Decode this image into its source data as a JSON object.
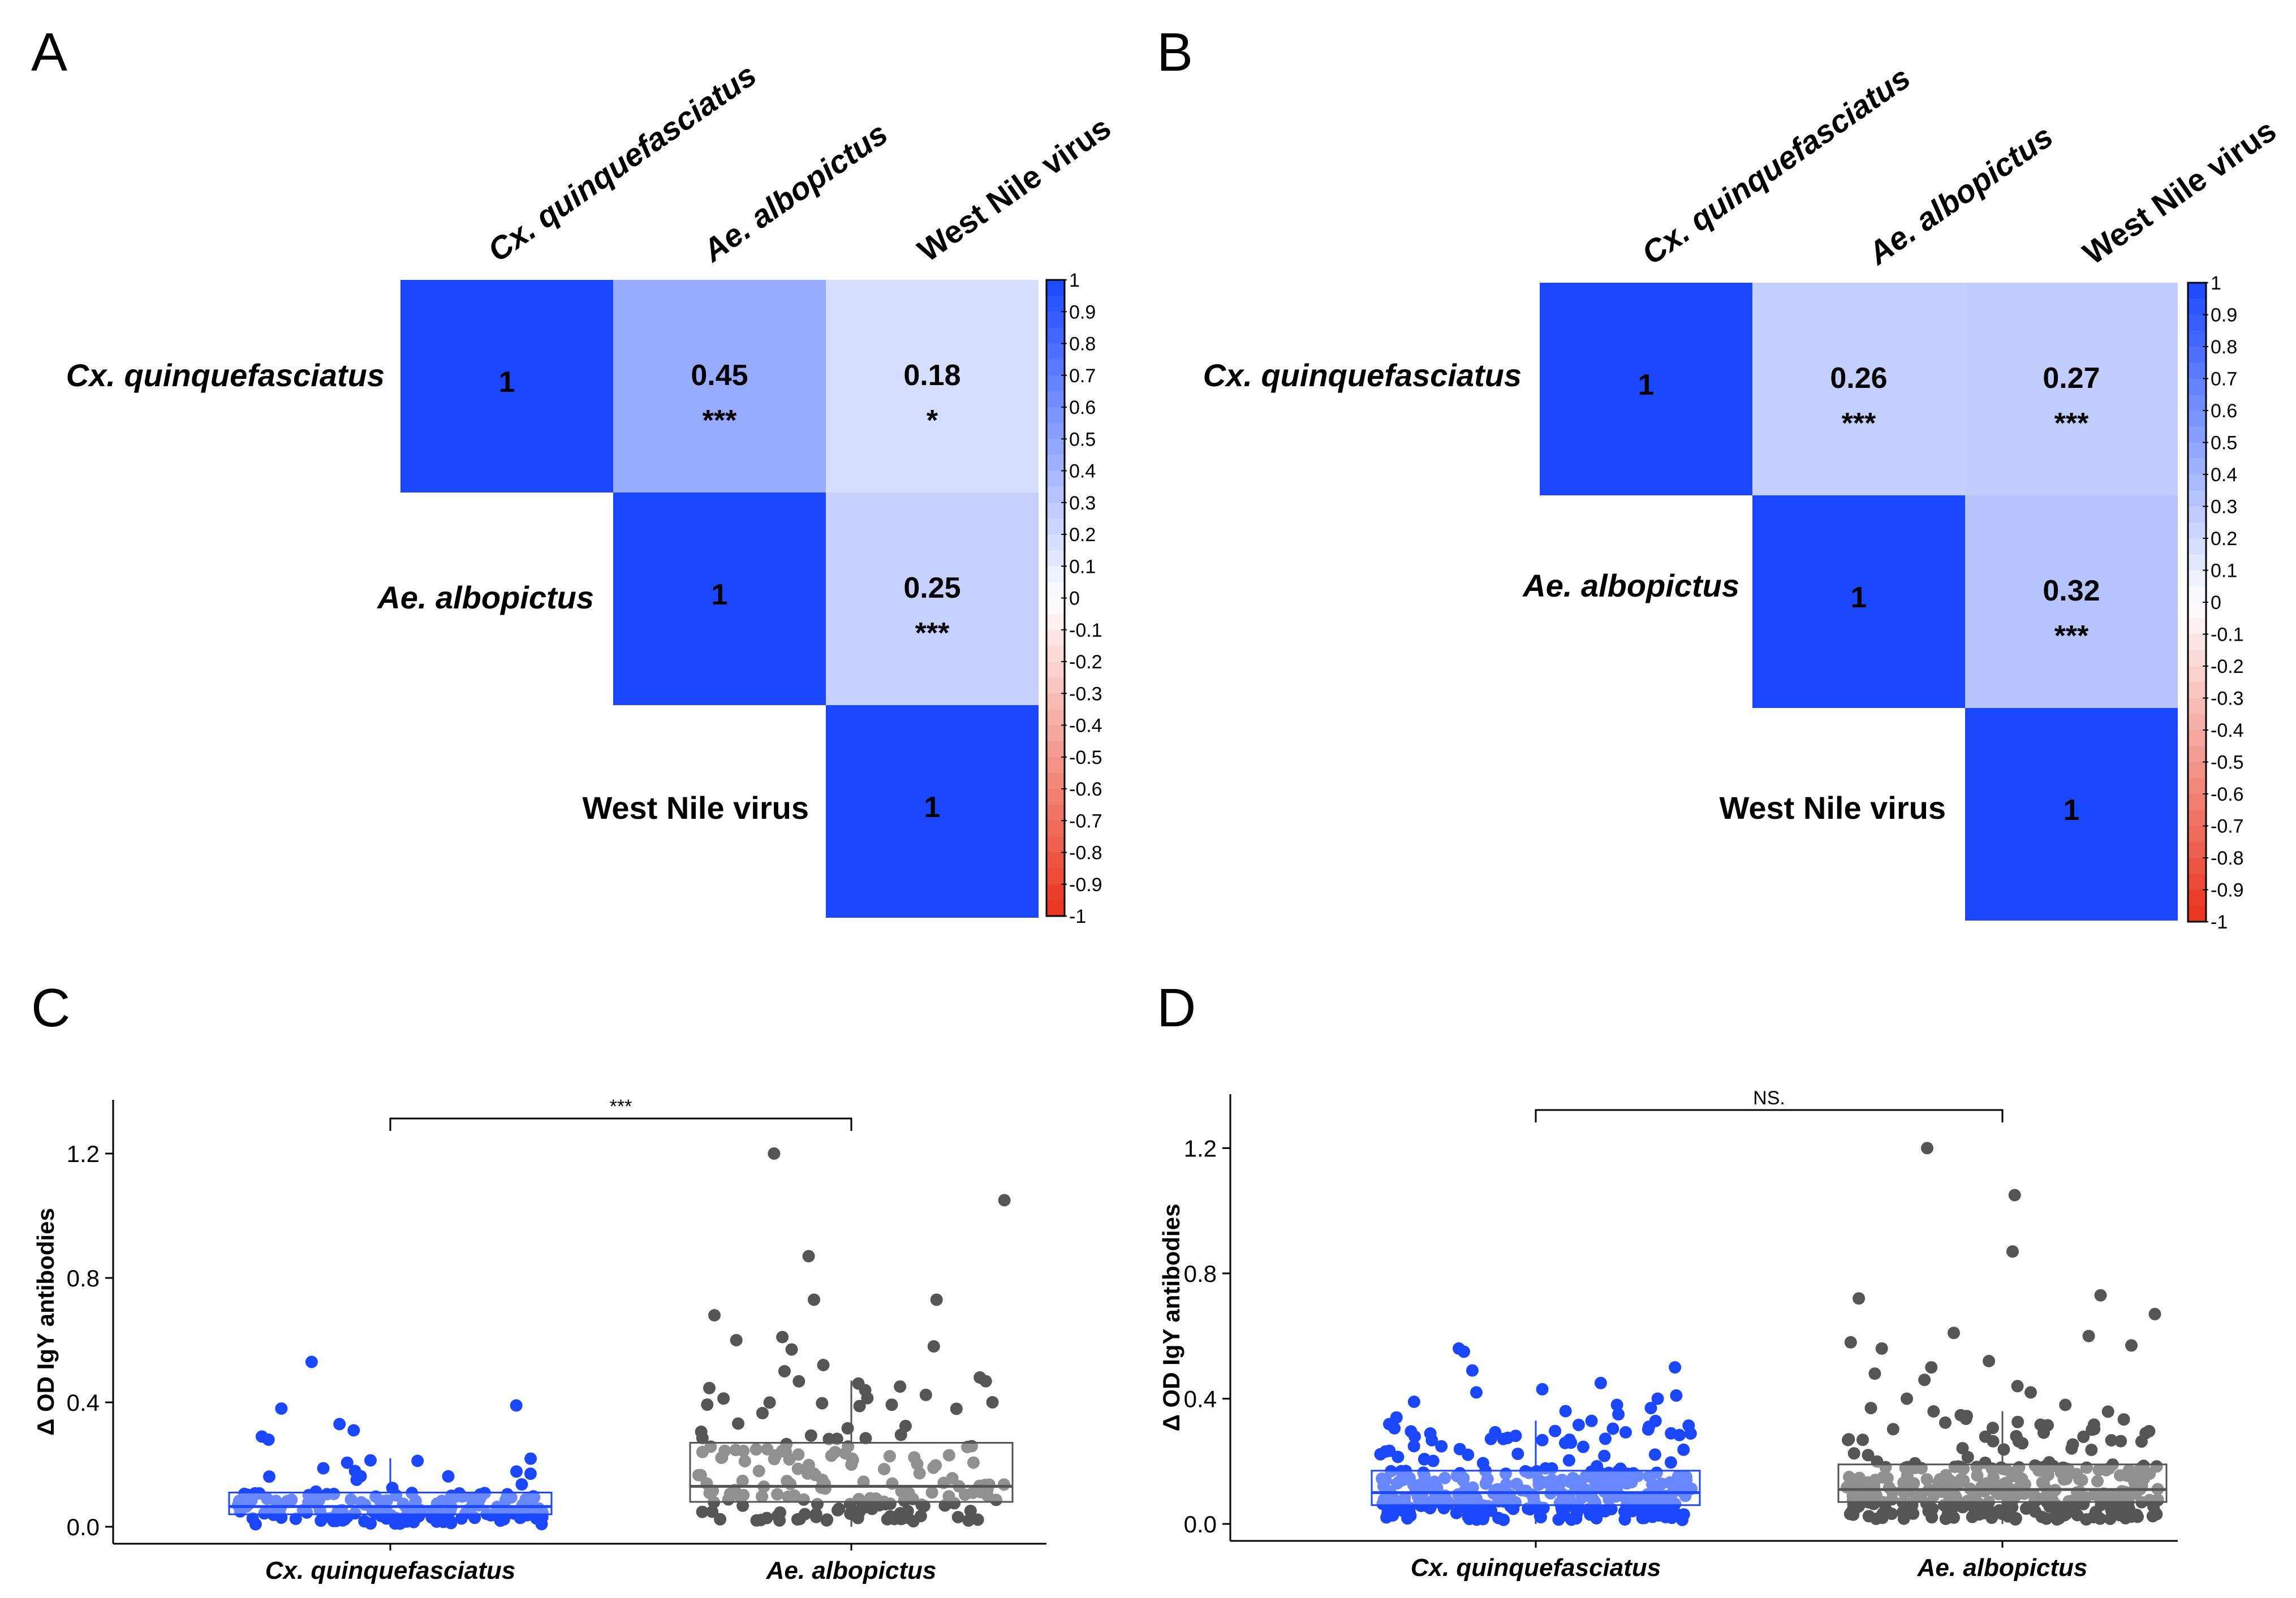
{
  "panels": {
    "a": "A",
    "b": "B",
    "c": "C",
    "d": "D"
  },
  "colors": {
    "pos": "#1a47ff",
    "neg": "#e8311a",
    "mid": "#ffffff",
    "grey_pt": "#555555",
    "blue_box": "#1a47ff",
    "grey_box": "#555555"
  },
  "chart_data": [
    {
      "type": "heatmap",
      "panel": "A",
      "variables": [
        "Cx. quinquefasciatus",
        "Ae. albopictus",
        "West Nile virus"
      ],
      "cells": [
        {
          "row": 0,
          "col": 0,
          "value": 1,
          "sig": ""
        },
        {
          "row": 0,
          "col": 1,
          "value": 0.45,
          "sig": "***"
        },
        {
          "row": 0,
          "col": 2,
          "value": 0.18,
          "sig": "*"
        },
        {
          "row": 1,
          "col": 1,
          "value": 1,
          "sig": ""
        },
        {
          "row": 1,
          "col": 2,
          "value": 0.25,
          "sig": "***"
        },
        {
          "row": 2,
          "col": 2,
          "value": 1,
          "sig": ""
        }
      ],
      "colorbar_ticks": [
        "1",
        "0.9",
        "0.8",
        "0.7",
        "0.6",
        "0.5",
        "0.4",
        "0.3",
        "0.2",
        "0.1",
        "0",
        "-0.1",
        "-0.2",
        "-0.3",
        "-0.4",
        "-0.5",
        "-0.6",
        "-0.7",
        "-0.8",
        "-0.9",
        "-1"
      ],
      "range": [
        -1,
        1
      ]
    },
    {
      "type": "heatmap",
      "panel": "B",
      "variables": [
        "Cx. quinquefasciatus",
        "Ae. albopictus",
        "West Nile virus"
      ],
      "cells": [
        {
          "row": 0,
          "col": 0,
          "value": 1,
          "sig": ""
        },
        {
          "row": 0,
          "col": 1,
          "value": 0.26,
          "sig": "***"
        },
        {
          "row": 0,
          "col": 2,
          "value": 0.27,
          "sig": "***"
        },
        {
          "row": 1,
          "col": 1,
          "value": 1,
          "sig": ""
        },
        {
          "row": 1,
          "col": 2,
          "value": 0.32,
          "sig": "***"
        },
        {
          "row": 2,
          "col": 2,
          "value": 1,
          "sig": ""
        }
      ],
      "colorbar_ticks": [
        "1",
        "0.9",
        "0.8",
        "0.7",
        "0.6",
        "0.5",
        "0.4",
        "0.3",
        "0.2",
        "0.1",
        "0",
        "-0.1",
        "-0.2",
        "-0.3",
        "-0.4",
        "-0.5",
        "-0.6",
        "-0.7",
        "-0.8",
        "-0.9",
        "-1"
      ],
      "range": [
        -1,
        1
      ]
    },
    {
      "type": "scatter",
      "subtype": "box-jitter",
      "panel": "C",
      "ylabel": "Δ OD IgY antibodies",
      "yticks": [
        "0.0",
        "0.4",
        "0.8",
        "1.2"
      ],
      "ylim": [
        0,
        1.3
      ],
      "categories": [
        "Cx. quinquefasciatus",
        "Ae. albopictus"
      ],
      "significance": "***",
      "boxes": [
        {
          "q1": 0.04,
          "median": 0.065,
          "q3": 0.11,
          "whisker_low": 0.0,
          "whisker_high": 0.22
        },
        {
          "q1": 0.08,
          "median": 0.13,
          "q3": 0.27,
          "whisker_low": 0.0,
          "whisker_high": 0.47
        }
      ],
      "outliers": [
        {
          "group": 0,
          "values": [
            0.53,
            0.39,
            0.38,
            0.33,
            0.31,
            0.29,
            0.28
          ]
        },
        {
          "group": 1,
          "values": [
            1.2,
            1.05,
            0.87,
            0.73,
            0.73,
            0.68,
            0.61,
            0.6,
            0.58,
            0.57,
            0.52,
            0.5,
            0.48
          ]
        }
      ],
      "n_points": [
        170,
        170
      ],
      "seeds": [
        11,
        23
      ]
    },
    {
      "type": "scatter",
      "subtype": "box-jitter",
      "panel": "D",
      "ylabel": "Δ OD IgY antibodies",
      "yticks": [
        "0.0",
        "0.4",
        "0.8",
        "1.2"
      ],
      "ylim": [
        0,
        1.3
      ],
      "categories": [
        "Cx. quinquefasciatus",
        "Ae. albopictus"
      ],
      "significance": "NS.",
      "boxes": [
        {
          "q1": 0.06,
          "median": 0.1,
          "q3": 0.17,
          "whisker_low": 0.0,
          "whisker_high": 0.33
        },
        {
          "q1": 0.07,
          "median": 0.11,
          "q3": 0.19,
          "whisker_low": 0.0,
          "whisker_high": 0.36
        }
      ],
      "outliers": [
        {
          "group": 0,
          "values": [
            0.56,
            0.55,
            0.5,
            0.49,
            0.45,
            0.43,
            0.42,
            0.41,
            0.4,
            0.39,
            0.38,
            0.37,
            0.36,
            0.35,
            0.34
          ]
        },
        {
          "group": 1,
          "values": [
            1.2,
            1.05,
            0.87,
            0.73,
            0.72,
            0.67,
            0.61,
            0.6,
            0.58,
            0.57,
            0.56,
            0.52,
            0.5,
            0.48,
            0.46,
            0.44,
            0.42,
            0.4,
            0.38,
            0.37
          ]
        }
      ],
      "n_points": [
        320,
        320
      ],
      "seeds": [
        37,
        51
      ]
    }
  ]
}
